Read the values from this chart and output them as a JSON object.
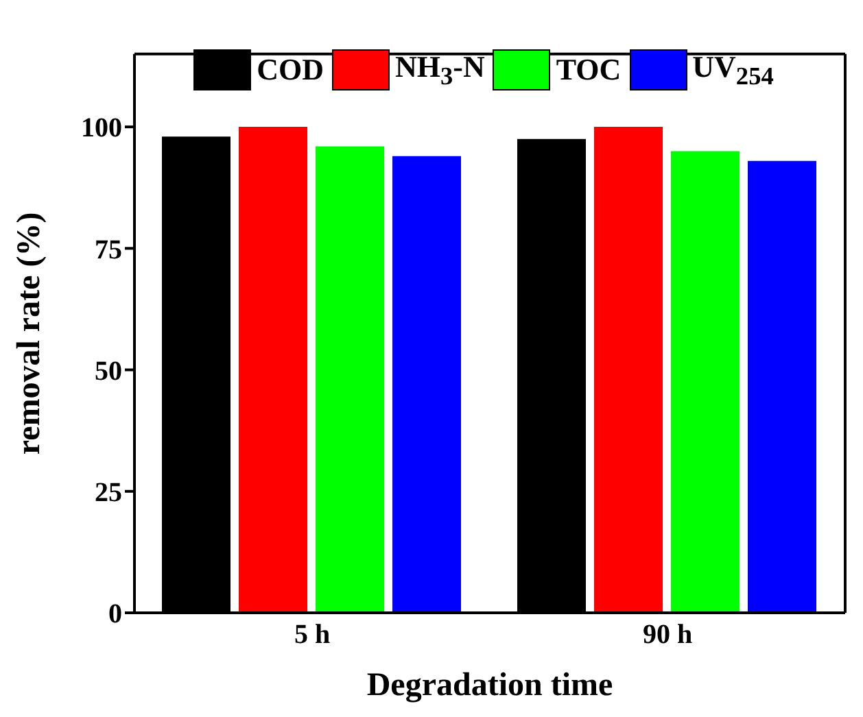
{
  "chart_data": {
    "type": "bar",
    "xlabel": "Degradation time",
    "ylabel": "removal rate (%)",
    "categories": [
      "5 h",
      "90 h"
    ],
    "series": [
      {
        "name": "COD",
        "color": "#000000",
        "values": [
          98,
          97.5
        ]
      },
      {
        "name": "NH$_{3}$-N",
        "color": "#ff0000",
        "values": [
          100,
          100
        ]
      },
      {
        "name": "TOC",
        "color": "#00ff00",
        "values": [
          96,
          95
        ]
      },
      {
        "name": "UV$_{254}$",
        "color": "#0000ff",
        "values": [
          94,
          93
        ]
      }
    ],
    "ylim": [
      0,
      115
    ],
    "yticks": [
      0,
      25,
      50,
      75,
      100
    ],
    "legend": "top",
    "grid": false
  }
}
